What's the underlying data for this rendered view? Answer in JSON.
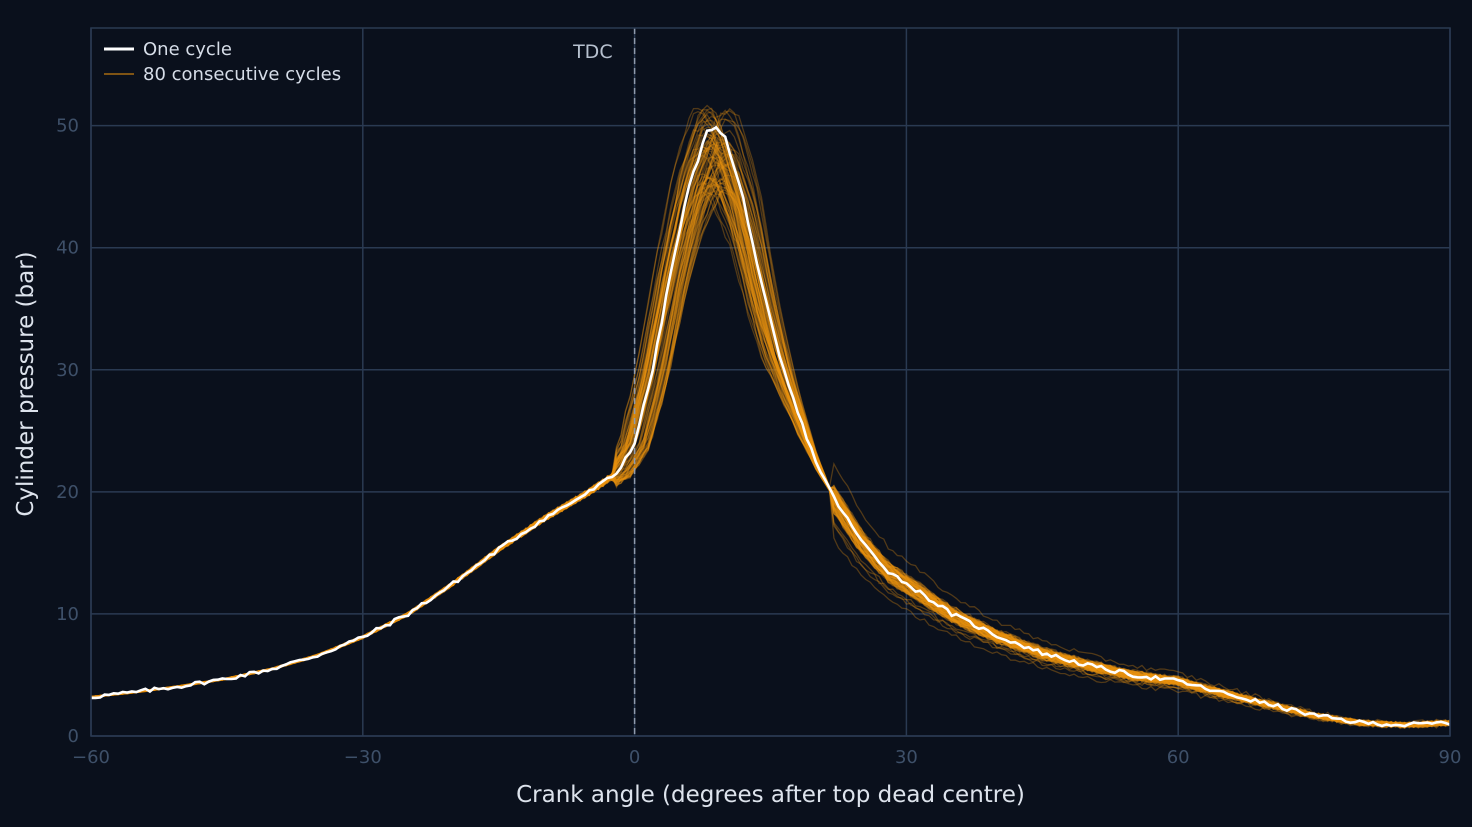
{
  "chart_data": {
    "type": "line",
    "xlabel": "Crank angle (degrees after top dead centre)",
    "ylabel": "Cylinder pressure (bar)",
    "xlim": [
      -60,
      90
    ],
    "ylim": [
      0,
      58
    ],
    "x_ticks": [
      "−60",
      "−30",
      "0",
      "30",
      "60",
      "90"
    ],
    "x_tick_values": [
      -60,
      -30,
      0,
      30,
      60,
      90
    ],
    "y_ticks": [
      "0",
      "10",
      "20",
      "30",
      "40",
      "50"
    ],
    "y_tick_values": [
      0,
      10,
      20,
      30,
      40,
      50
    ],
    "grid": true,
    "legend_position": "top-left",
    "annotation": {
      "label": "TDC",
      "x": 0
    },
    "colors": {
      "background": "#0a101c",
      "grid": "#2a3a52",
      "one_cycle": "#ffffff",
      "cycles": "#e8920e",
      "tdc_line": "#8f9aab"
    },
    "series": [
      {
        "name": "One cycle",
        "x": [
          -60,
          -55,
          -50,
          -45,
          -40,
          -35,
          -30,
          -25,
          -20,
          -15,
          -10,
          -5,
          -2,
          0,
          2,
          4,
          6,
          8,
          9,
          10,
          12,
          14,
          16,
          18,
          20,
          22,
          25,
          28,
          30,
          35,
          40,
          45,
          50,
          55,
          60,
          65,
          70,
          75,
          80,
          85,
          90
        ],
        "y": [
          3.2,
          3.6,
          4.1,
          4.7,
          5.5,
          6.6,
          8.1,
          10.0,
          12.5,
          15.3,
          17.8,
          20.0,
          21.5,
          24.0,
          30.0,
          38.0,
          45.0,
          49.5,
          50.0,
          49.0,
          44.0,
          37.0,
          31.0,
          26.5,
          22.5,
          19.5,
          16.0,
          13.5,
          12.5,
          10.0,
          8.2,
          6.8,
          5.8,
          5.0,
          4.5,
          3.5,
          2.6,
          1.7,
          1.1,
          0.9,
          1.1
        ]
      },
      {
        "name": "80 consecutive cycles",
        "count": 80,
        "peak_range": [
          40.5,
          53.5
        ],
        "peak_angle_range": [
          6,
          12
        ]
      }
    ]
  }
}
